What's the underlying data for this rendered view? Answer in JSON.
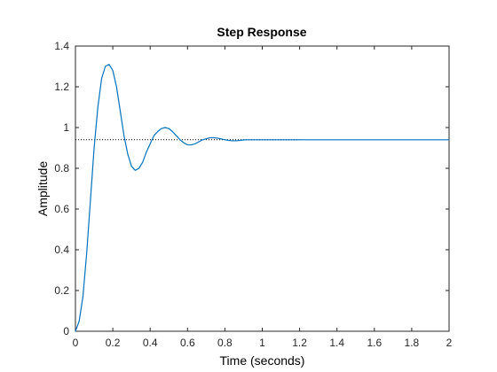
{
  "chart_data": {
    "type": "line",
    "title": "Step Response",
    "xlabel": "Time (seconds)",
    "ylabel": "Amplitude",
    "xlim": [
      0,
      2
    ],
    "ylim": [
      0,
      1.4
    ],
    "x_ticks": [
      "0",
      "0.2",
      "0.4",
      "0.6",
      "0.8",
      "1",
      "1.2",
      "1.4",
      "1.6",
      "1.8",
      "2"
    ],
    "y_ticks": [
      "0",
      "0.2",
      "0.4",
      "0.6",
      "0.8",
      "1",
      "1.2",
      "1.4"
    ],
    "grid": false,
    "steady_state": 0.94,
    "steady_state_line_x_end": 1.2,
    "series": [
      {
        "x": [
          0,
          0.02,
          0.04,
          0.06,
          0.08,
          0.1,
          0.12,
          0.14,
          0.16,
          0.18,
          0.2,
          0.22,
          0.24,
          0.26,
          0.28,
          0.3,
          0.32,
          0.34,
          0.36,
          0.38,
          0.4,
          0.42,
          0.44,
          0.46,
          0.48,
          0.5,
          0.52,
          0.54,
          0.56,
          0.58,
          0.6,
          0.62,
          0.64,
          0.66,
          0.68,
          0.7,
          0.72,
          0.74,
          0.76,
          0.78,
          0.8,
          0.82,
          0.84,
          0.86,
          0.88,
          0.9,
          0.92,
          0.94,
          0.96,
          0.98,
          1.0,
          1.05,
          1.1,
          1.15,
          1.2,
          1.3,
          1.4,
          1.6,
          1.8,
          2.0
        ],
        "y": [
          0,
          0.05,
          0.17,
          0.38,
          0.64,
          0.9,
          1.1,
          1.24,
          1.3,
          1.31,
          1.28,
          1.2,
          1.08,
          0.96,
          0.87,
          0.81,
          0.79,
          0.8,
          0.83,
          0.88,
          0.92,
          0.96,
          0.98,
          0.995,
          1.0,
          0.995,
          0.98,
          0.96,
          0.94,
          0.925,
          0.915,
          0.915,
          0.92,
          0.93,
          0.94,
          0.945,
          0.95,
          0.95,
          0.948,
          0.944,
          0.94,
          0.937,
          0.935,
          0.935,
          0.937,
          0.939,
          0.94,
          0.94,
          0.94,
          0.94,
          0.94,
          0.94,
          0.94,
          0.94,
          0.94,
          0.94,
          0.94,
          0.94,
          0.94,
          0.94
        ]
      }
    ],
    "colors": {
      "line": "#0072BD",
      "axes": "#262626",
      "reference": "#000000"
    }
  }
}
